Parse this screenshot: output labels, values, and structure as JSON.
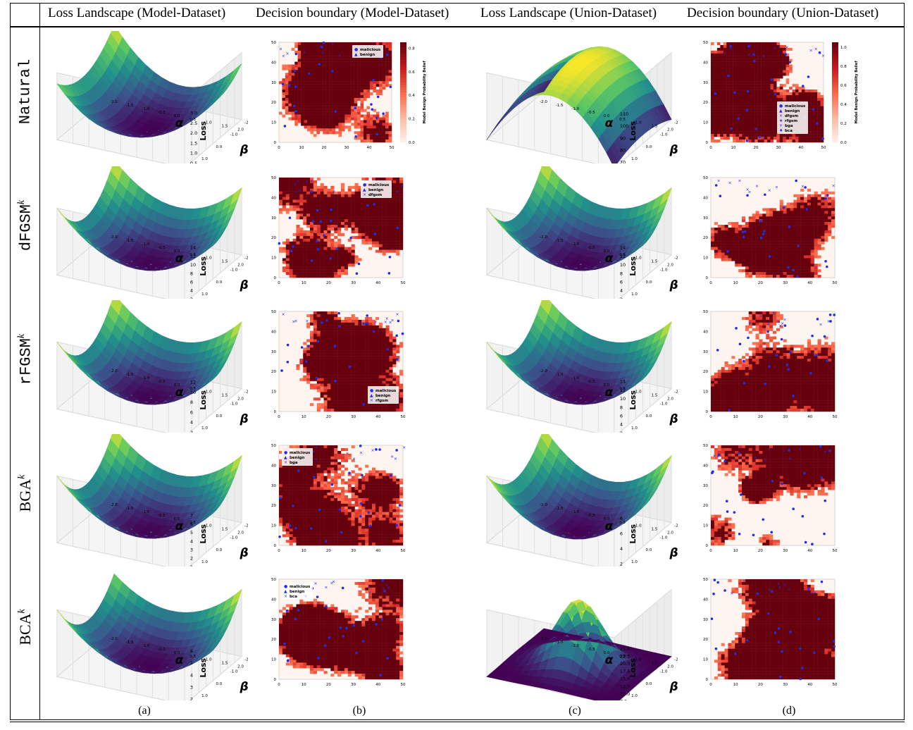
{
  "header": {
    "col_a": "Loss Landscape (Model-Dataset)",
    "col_b": "Decision boundary (Model-Dataset)",
    "col_c": "Loss Landscape (Union-Dataset)",
    "col_d": "Decision boundary (Union-Dataset)"
  },
  "rows": [
    {
      "base": "Natural",
      "sup": ""
    },
    {
      "base": "dFGSM",
      "sup": "k"
    },
    {
      "base": "rFGSM",
      "sup": "k"
    },
    {
      "base": "BGA",
      "sup": "k"
    },
    {
      "base": "BCA",
      "sup": "k"
    }
  ],
  "captions": [
    "(a)",
    "(b)",
    "(c)",
    "(d)"
  ],
  "axis": {
    "alpha": "α",
    "beta": "β",
    "loss": "Loss",
    "x_ticks": [
      "-2.0",
      "-1.5",
      "-1.0",
      "-0.5",
      "0.0",
      "0.5",
      "1.0",
      "1.5",
      "2.0"
    ],
    "grid_ticks": [
      "0",
      "10",
      "20",
      "30",
      "40",
      "50"
    ],
    "colorbar_ticks": [
      "0.0",
      "0.2",
      "0.4",
      "0.6",
      "0.8"
    ],
    "colorbar_ticks_d": [
      "0.0",
      "0.2",
      "0.4",
      "0.6",
      "0.8",
      "1.0"
    ],
    "colorbar_label": "Model Benign Probability Belief"
  },
  "loss_ticks": {
    "a": [
      [
        "0.5",
        "1.0",
        "1.5",
        "2.0",
        "2.5",
        "3.0"
      ],
      [
        "2",
        "4",
        "6",
        "8",
        "10",
        "12",
        "14"
      ],
      [
        "2",
        "4",
        "6",
        "8",
        "10",
        "12"
      ],
      [
        "1",
        "2",
        "3",
        "4",
        "5",
        "6",
        "7"
      ],
      [
        "2",
        "3",
        "4",
        "5",
        "6"
      ]
    ],
    "c": [
      [
        "70",
        "80",
        "90",
        "100",
        "110"
      ],
      [
        "2",
        "4",
        "6",
        "8",
        "10",
        "12",
        "14"
      ],
      [
        "2",
        "4",
        "6",
        "8",
        "10",
        "12",
        "14"
      ],
      [
        "2",
        "4",
        "6",
        "8"
      ],
      [
        "7.5",
        "10.0",
        "12.5",
        "15.0",
        "17.5",
        "20.0",
        "22.5",
        "25.0"
      ]
    ]
  },
  "legends": {
    "b": [
      [
        "malicious",
        "benign"
      ],
      [
        "malicious",
        "benign",
        "dfgsm"
      ],
      [
        "malicious",
        "benign",
        "rfgsm"
      ],
      [
        "malicious",
        "benign",
        "bga"
      ],
      [
        "malicious",
        "benign",
        "bca"
      ]
    ],
    "d0": [
      "malicious",
      "benign",
      "dfgsm",
      "rfgsm",
      "bga",
      "bca"
    ]
  },
  "colors": {
    "marker": "#1f2fe8",
    "heat_dark": "#67000d",
    "heat_light": "#fff5f0"
  }
}
